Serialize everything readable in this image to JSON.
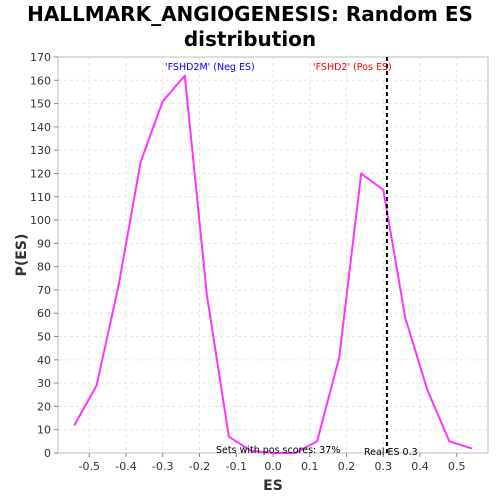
{
  "chart_data": {
    "type": "line",
    "title_line1": "HALLMARK_ANGIOGENESIS: Random ES",
    "title_line2": "distribution",
    "xlabel": "ES",
    "ylabel": "P(ES)",
    "xlim": [
      -0.585,
      0.585
    ],
    "ylim": [
      0,
      170
    ],
    "x_ticks": [
      -0.5,
      -0.4,
      -0.3,
      -0.2,
      -0.1,
      0.0,
      0.1,
      0.2,
      0.3,
      0.4,
      0.5
    ],
    "x_tick_labels": [
      "-0.5",
      "-0.4",
      "-0.3",
      "-0.2",
      "-0.1",
      "0.0",
      "0.1",
      "0.2",
      "0.3",
      "0.4",
      "0.5"
    ],
    "y_ticks": [
      0,
      10,
      20,
      30,
      40,
      50,
      60,
      70,
      80,
      90,
      100,
      110,
      120,
      130,
      140,
      150,
      160,
      170
    ],
    "y_tick_labels": [
      "0",
      "10",
      "20",
      "30",
      "40",
      "50",
      "60",
      "70",
      "80",
      "90",
      "100",
      "110",
      "120",
      "130",
      "140",
      "150",
      "160",
      "170"
    ],
    "grid": true,
    "series": [
      {
        "color": "#ff33ff",
        "x": [
          -0.54,
          -0.48,
          -0.42,
          -0.36,
          -0.3,
          -0.24,
          -0.18,
          -0.12,
          -0.06,
          0.0,
          0.06,
          0.12,
          0.18,
          0.24,
          0.3,
          0.36,
          0.42,
          0.48,
          0.54
        ],
        "y": [
          12,
          29,
          72,
          125,
          151,
          162,
          68,
          7,
          1,
          0,
          0,
          5,
          41,
          120,
          113,
          58,
          27,
          5,
          2
        ]
      }
    ],
    "vline": {
      "x": 0.31,
      "color": "#000000",
      "style": "dashed"
    },
    "annotations": {
      "neg_label": "'FSHD2M' (Neg ES)",
      "neg_color": "#0000ff",
      "pos_label": "'FSHD2' (Pos ES)",
      "pos_color": "#ff0000",
      "pos_scores": "Sets with pos scores: 37%",
      "real_es": "Real ES 0.3"
    }
  }
}
